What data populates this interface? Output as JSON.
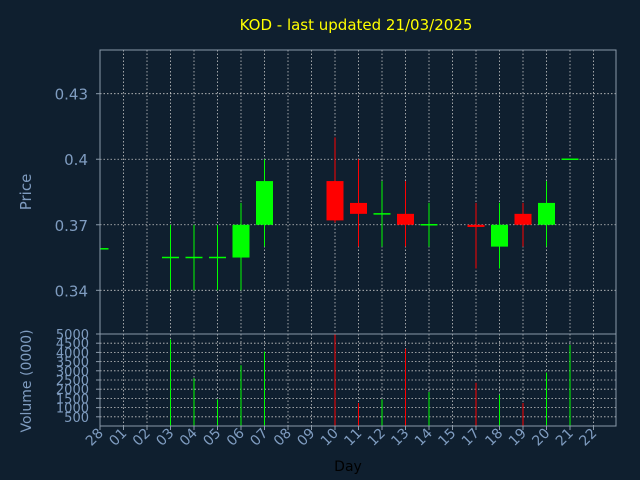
{
  "colors": {
    "background": "#0f1f2f",
    "plot_background": "#0f1f2f",
    "frame": "#8a9aaa",
    "grid": "#c8c8c8",
    "title": "#ffff00",
    "axis_text": "#7f9cc0",
    "axis_label": "#7f9cc0",
    "day_label": "#000000",
    "up": "#00ff00",
    "down": "#ff0000"
  },
  "chart_data": [
    {
      "type": "candlestick",
      "title": "KOD - last updated 21/03/2025",
      "ylabel": "Price",
      "grid": true,
      "x_categories": [
        "28",
        "01",
        "02",
        "03",
        "04",
        "05",
        "06",
        "07",
        "08",
        "09",
        "10",
        "11",
        "12",
        "13",
        "14",
        "15",
        "17",
        "18",
        "19",
        "20",
        "21",
        "22"
      ],
      "ylim": [
        0.32,
        0.45
      ],
      "yticks": [
        0.34,
        0.37,
        0.4,
        0.43
      ],
      "ytick_labels": [
        "0.34",
        "0.37",
        "0.4",
        "0.43"
      ],
      "candles": [
        {
          "x": "28",
          "open": 0.359,
          "high": 0.359,
          "low": 0.359,
          "close": 0.359
        },
        {
          "x": "03",
          "open": 0.355,
          "high": 0.37,
          "low": 0.34,
          "close": 0.355
        },
        {
          "x": "04",
          "open": 0.355,
          "high": 0.37,
          "low": 0.34,
          "close": 0.355
        },
        {
          "x": "05",
          "open": 0.355,
          "high": 0.37,
          "low": 0.34,
          "close": 0.355
        },
        {
          "x": "06",
          "open": 0.355,
          "high": 0.38,
          "low": 0.34,
          "close": 0.37
        },
        {
          "x": "07",
          "open": 0.37,
          "high": 0.4,
          "low": 0.36,
          "close": 0.39
        },
        {
          "x": "10",
          "open": 0.39,
          "high": 0.41,
          "low": 0.371,
          "close": 0.372
        },
        {
          "x": "11",
          "open": 0.38,
          "high": 0.4,
          "low": 0.36,
          "close": 0.375
        },
        {
          "x": "12",
          "open": 0.375,
          "high": 0.39,
          "low": 0.36,
          "close": 0.375
        },
        {
          "x": "13",
          "open": 0.375,
          "high": 0.39,
          "low": 0.36,
          "close": 0.37
        },
        {
          "x": "14",
          "open": 0.37,
          "high": 0.38,
          "low": 0.36,
          "close": 0.37
        },
        {
          "x": "17",
          "open": 0.37,
          "high": 0.38,
          "low": 0.35,
          "close": 0.369
        },
        {
          "x": "18",
          "open": 0.36,
          "high": 0.38,
          "low": 0.35,
          "close": 0.37
        },
        {
          "x": "19",
          "open": 0.375,
          "high": 0.38,
          "low": 0.36,
          "close": 0.37
        },
        {
          "x": "20",
          "open": 0.37,
          "high": 0.39,
          "low": 0.36,
          "close": 0.38
        },
        {
          "x": "21",
          "open": 0.4,
          "high": 0.4,
          "low": 0.4,
          "close": 0.4
        }
      ]
    },
    {
      "type": "bar",
      "ylabel": "Volume (0000)",
      "xlabel": "Day",
      "grid": true,
      "x_categories": [
        "28",
        "01",
        "02",
        "03",
        "04",
        "05",
        "06",
        "07",
        "08",
        "09",
        "10",
        "11",
        "12",
        "13",
        "14",
        "15",
        "17",
        "18",
        "19",
        "20",
        "21",
        "22"
      ],
      "ylim": [
        0,
        5000
      ],
      "yticks": [
        500,
        1000,
        1500,
        2000,
        2500,
        3000,
        3500,
        4000,
        4500,
        5000
      ],
      "ytick_labels": [
        "500",
        "1000",
        "1500",
        "2000",
        "2500",
        "3000",
        "3500",
        "4000",
        "4500",
        "5000"
      ],
      "bars": [
        {
          "x": "03",
          "value": 4700,
          "direction": "up"
        },
        {
          "x": "04",
          "value": 2600,
          "direction": "up"
        },
        {
          "x": "05",
          "value": 1450,
          "direction": "up"
        },
        {
          "x": "06",
          "value": 3300,
          "direction": "up"
        },
        {
          "x": "07",
          "value": 4050,
          "direction": "up"
        },
        {
          "x": "10",
          "value": 5000,
          "direction": "down"
        },
        {
          "x": "11",
          "value": 1250,
          "direction": "down"
        },
        {
          "x": "12",
          "value": 1450,
          "direction": "up"
        },
        {
          "x": "13",
          "value": 4200,
          "direction": "down"
        },
        {
          "x": "14",
          "value": 1850,
          "direction": "up"
        },
        {
          "x": "17",
          "value": 2350,
          "direction": "down"
        },
        {
          "x": "18",
          "value": 1700,
          "direction": "up"
        },
        {
          "x": "19",
          "value": 1250,
          "direction": "down"
        },
        {
          "x": "20",
          "value": 2900,
          "direction": "up"
        },
        {
          "x": "21",
          "value": 4400,
          "direction": "up"
        }
      ]
    }
  ]
}
